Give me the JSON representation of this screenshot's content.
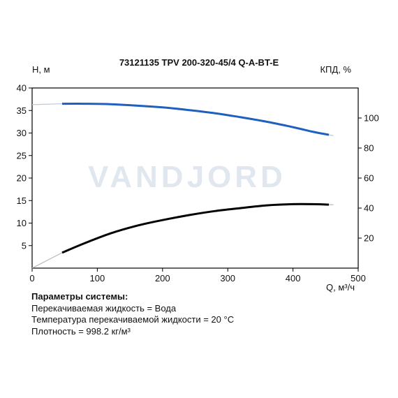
{
  "chart_data": {
    "type": "line",
    "title": "73121135 TPV 200-320-45/4 Q-A-BT-E",
    "xlabel": "Q, м³/ч",
    "ylabel_left": "H, м",
    "ylabel_right": "КПД, %",
    "xlim": [
      0,
      500
    ],
    "ylim_left": [
      0,
      40
    ],
    "ylim_right": [
      0,
      120
    ],
    "x_ticks": [
      0,
      100,
      200,
      300,
      400,
      500
    ],
    "y_left_ticks": [
      5,
      10,
      15,
      20,
      25,
      30,
      35,
      40
    ],
    "y_right_ticks": [
      20,
      40,
      60,
      80,
      100
    ],
    "grid": false,
    "series": [
      {
        "axis": "left",
        "color": "#1f5fbf",
        "extension_color": "#b8c8de",
        "x": [
          46,
          80,
          120,
          160,
          200,
          240,
          280,
          320,
          360,
          400,
          430,
          455
        ],
        "y": [
          36.5,
          36.5,
          36.4,
          36.1,
          35.7,
          35.1,
          34.4,
          33.5,
          32.5,
          31.3,
          30.3,
          29.6
        ],
        "extension_before": {
          "x": [
            0,
            46
          ],
          "y": [
            36.3,
            36.5
          ]
        },
        "extension_after": {
          "x": [
            455,
            462
          ],
          "y": [
            29.6,
            29.4
          ]
        }
      },
      {
        "axis": "right",
        "color": "#000000",
        "extension_color": "#b8b8b8",
        "x": [
          46,
          80,
          120,
          160,
          200,
          240,
          280,
          320,
          360,
          400,
          430,
          455
        ],
        "y": [
          10.3,
          16.5,
          23.1,
          28.2,
          32.0,
          35.3,
          38.0,
          40.0,
          41.8,
          42.6,
          42.6,
          42.3
        ],
        "extension_before": {
          "x": [
            0,
            46
          ],
          "y": [
            0,
            10.3
          ]
        },
        "extension_after": {
          "x": [
            455,
            462
          ],
          "y": [
            42.3,
            42.2
          ]
        }
      }
    ]
  },
  "watermark": "VANDJORD",
  "params": {
    "heading": "Параметры системы:",
    "lines": [
      "Перекачиваемая жидкость = Вода",
      "Температура перекачиваемой жидкости = 20 °C",
      "Плотность = 998.2 кг/м³"
    ]
  }
}
